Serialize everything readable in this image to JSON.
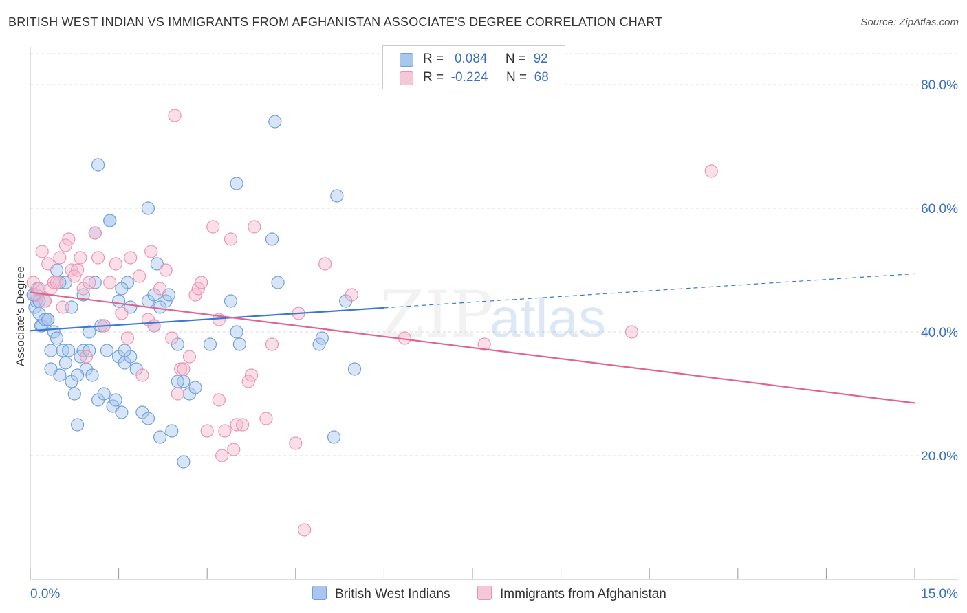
{
  "header": {
    "title": "BRITISH WEST INDIAN VS IMMIGRANTS FROM AFGHANISTAN ASSOCIATE'S DEGREE CORRELATION CHART",
    "source": "Source: ZipAtlas.com"
  },
  "legend_top": {
    "rows": [
      {
        "r_label": "R =",
        "r_value": "0.084",
        "n_label": "N =",
        "n_value": "92"
      },
      {
        "r_label": "R =",
        "r_value": "-0.224",
        "n_label": "N =",
        "n_value": "68"
      }
    ]
  },
  "watermark": {
    "zip": "ZIP",
    "atlas": "atlas"
  },
  "colors": {
    "blue_fill": "#a9c6ee",
    "blue_stroke": "#6f9fdc",
    "blue_line": "#3a78d4",
    "pink_fill": "#f6b8cb",
    "pink_stroke": "#ec93b0",
    "pink_line": "#e0648f",
    "grid": "#dddddd",
    "tick_label": "#3a6fc4"
  },
  "chart_data": {
    "type": "scatter",
    "title": "BRITISH WEST INDIAN VS IMMIGRANTS FROM AFGHANISTAN ASSOCIATE'S DEGREE CORRELATION CHART",
    "xlabel": "",
    "ylabel": "Associate's Degree",
    "xlim": [
      0,
      15
    ],
    "ylim": [
      0,
      85
    ],
    "x_tick_labels": [
      "0.0%",
      "15.0%"
    ],
    "y_ticks": [
      20,
      40,
      60,
      80
    ],
    "y_tick_labels": [
      "20.0%",
      "40.0%",
      "60.0%",
      "80.0%"
    ],
    "grid": true,
    "legend_position": "top-center",
    "series": [
      {
        "name": "British West Indians",
        "r": 0.084,
        "n": 92,
        "trend": {
          "x": [
            0,
            6
          ],
          "y": [
            40.2,
            43.9
          ],
          "dashed_to": [
            15,
            49.4
          ]
        },
        "points": [
          [
            0.05,
            46
          ],
          [
            0.08,
            44
          ],
          [
            0.1,
            45
          ],
          [
            0.12,
            47
          ],
          [
            0.15,
            43
          ],
          [
            0.18,
            41
          ],
          [
            0.2,
            41
          ],
          [
            0.25,
            42
          ],
          [
            0.3,
            42
          ],
          [
            0.35,
            37
          ],
          [
            0.4,
            40
          ],
          [
            0.45,
            39
          ],
          [
            0.5,
            33
          ],
          [
            0.55,
            37
          ],
          [
            0.6,
            35
          ],
          [
            0.65,
            37
          ],
          [
            0.7,
            32
          ],
          [
            0.75,
            30
          ],
          [
            0.8,
            25
          ],
          [
            0.85,
            36
          ],
          [
            0.9,
            37
          ],
          [
            0.95,
            34
          ],
          [
            1.0,
            40
          ],
          [
            1.05,
            33
          ],
          [
            1.1,
            48
          ],
          [
            1.15,
            29
          ],
          [
            1.2,
            41
          ],
          [
            1.25,
            30
          ],
          [
            1.3,
            37
          ],
          [
            1.35,
            58
          ],
          [
            1.4,
            28
          ],
          [
            1.45,
            29
          ],
          [
            1.5,
            36
          ],
          [
            1.55,
            27
          ],
          [
            1.6,
            35
          ],
          [
            1.65,
            48
          ],
          [
            1.7,
            36
          ],
          [
            1.8,
            34
          ],
          [
            1.9,
            27
          ],
          [
            2.0,
            45
          ],
          [
            2.1,
            46
          ],
          [
            2.2,
            23
          ],
          [
            2.3,
            45
          ],
          [
            2.4,
            24
          ],
          [
            2.5,
            38
          ],
          [
            2.6,
            32
          ],
          [
            2.7,
            30
          ],
          [
            2.8,
            31
          ],
          [
            1.15,
            67
          ],
          [
            1.35,
            58
          ],
          [
            0.45,
            50
          ],
          [
            0.9,
            46
          ],
          [
            0.6,
            48
          ],
          [
            0.25,
            45
          ],
          [
            0.5,
            48
          ],
          [
            0.7,
            44
          ],
          [
            1.55,
            47
          ],
          [
            1.1,
            56
          ],
          [
            0.3,
            42
          ],
          [
            1.5,
            45
          ],
          [
            2.1,
            41
          ],
          [
            2.35,
            46
          ],
          [
            3.05,
            38
          ],
          [
            3.4,
            45
          ],
          [
            3.5,
            40
          ],
          [
            3.55,
            38
          ],
          [
            3.5,
            64
          ],
          [
            2.0,
            60
          ],
          [
            2.15,
            51
          ],
          [
            1.7,
            44
          ],
          [
            2.5,
            32
          ],
          [
            4.15,
            74
          ],
          [
            4.2,
            48
          ],
          [
            4.1,
            55
          ],
          [
            4.9,
            38
          ],
          [
            4.95,
            39
          ],
          [
            5.2,
            62
          ],
          [
            5.5,
            34
          ],
          [
            5.15,
            23
          ],
          [
            5.35,
            45
          ],
          [
            2.6,
            19
          ],
          [
            2.0,
            26
          ],
          [
            0.8,
            33
          ],
          [
            0.35,
            34
          ],
          [
            1.25,
            41
          ],
          [
            1.0,
            37
          ],
          [
            1.6,
            37
          ],
          [
            2.2,
            44
          ],
          [
            0.15,
            45
          ],
          [
            0.05,
            46
          ]
        ]
      },
      {
        "name": "Immigrants from Afghanistan",
        "r": -0.224,
        "n": 68,
        "trend": {
          "x": [
            0,
            15
          ],
          "y": [
            46.4,
            28.5
          ]
        },
        "points": [
          [
            0.05,
            48
          ],
          [
            0.1,
            46
          ],
          [
            0.15,
            47
          ],
          [
            0.2,
            53
          ],
          [
            0.25,
            45
          ],
          [
            0.3,
            51
          ],
          [
            0.35,
            47
          ],
          [
            0.4,
            48
          ],
          [
            0.45,
            48
          ],
          [
            0.5,
            52
          ],
          [
            0.6,
            54
          ],
          [
            0.65,
            55
          ],
          [
            0.7,
            50
          ],
          [
            0.75,
            49
          ],
          [
            0.8,
            50
          ],
          [
            0.85,
            52
          ],
          [
            0.9,
            47
          ],
          [
            0.95,
            36
          ],
          [
            1.0,
            48
          ],
          [
            1.1,
            56
          ],
          [
            1.15,
            52
          ],
          [
            1.25,
            41
          ],
          [
            1.35,
            48
          ],
          [
            1.45,
            51
          ],
          [
            1.55,
            43
          ],
          [
            1.65,
            39
          ],
          [
            1.7,
            52
          ],
          [
            1.85,
            49
          ],
          [
            2.0,
            42
          ],
          [
            2.05,
            53
          ],
          [
            2.1,
            41
          ],
          [
            2.2,
            47
          ],
          [
            2.3,
            50
          ],
          [
            2.4,
            39
          ],
          [
            2.5,
            30
          ],
          [
            2.55,
            34
          ],
          [
            2.6,
            34
          ],
          [
            2.7,
            36
          ],
          [
            2.8,
            46
          ],
          [
            2.85,
            47
          ],
          [
            2.9,
            48
          ],
          [
            3.0,
            24
          ],
          [
            3.1,
            57
          ],
          [
            3.2,
            42
          ],
          [
            3.25,
            20
          ],
          [
            3.3,
            24
          ],
          [
            3.4,
            55
          ],
          [
            3.45,
            21
          ],
          [
            3.5,
            25
          ],
          [
            3.6,
            25
          ],
          [
            3.7,
            32
          ],
          [
            3.75,
            33
          ],
          [
            3.8,
            57
          ],
          [
            4.0,
            26
          ],
          [
            4.1,
            38
          ],
          [
            4.5,
            22
          ],
          [
            4.55,
            43
          ],
          [
            4.65,
            8
          ],
          [
            5.0,
            51
          ],
          [
            5.45,
            46
          ],
          [
            6.35,
            39
          ],
          [
            7.7,
            38
          ],
          [
            10.2,
            40
          ],
          [
            11.55,
            66
          ],
          [
            2.45,
            75
          ],
          [
            0.55,
            44
          ],
          [
            1.9,
            33
          ],
          [
            3.2,
            29
          ]
        ]
      }
    ]
  }
}
